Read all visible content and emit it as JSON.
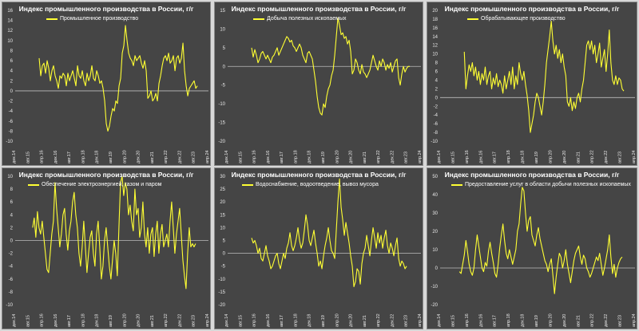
{
  "chart_data": [
    {
      "type": "line",
      "title": "Индекс промышленного производства в России, г/г",
      "series": [
        {
          "name": "Промышленное производство",
          "color": "#ffff33",
          "x_start": 2016.17,
          "values": [
            6.5,
            3.0,
            5.0,
            5.5,
            3.5,
            6.0,
            4.5,
            2.0,
            4.0,
            5.0,
            3.0,
            2.0,
            0.5,
            3.0,
            2.5,
            3.5,
            3.0,
            1.0,
            3.5,
            2.0,
            3.0,
            4.0,
            2.5,
            1.0,
            5.0,
            3.0,
            2.5,
            4.0,
            2.0,
            1.0,
            3.5,
            2.0,
            3.0,
            5.0,
            2.5,
            2.0,
            4.0,
            3.0,
            1.5,
            2.0,
            0.5,
            -2.0,
            -6.5,
            -8.0,
            -7.0,
            -5.0,
            -3.5,
            -4.0,
            -2.0,
            -2.5,
            1.0,
            2.5,
            7.5,
            9.0,
            13.0,
            10.0,
            7.5,
            6.5,
            6.0,
            5.0,
            7.0,
            6.0,
            6.5,
            7.0,
            5.5,
            4.5,
            6.0,
            4.0,
            -1.5,
            -1.0,
            0.0,
            -2.0,
            -1.5,
            -0.5,
            -2.0,
            1.5,
            3.0,
            5.0,
            6.5,
            7.0,
            6.0,
            7.5,
            5.5,
            6.0,
            7.0,
            4.0,
            6.5,
            7.0,
            5.5,
            6.5,
            9.5,
            4.0,
            1.0,
            -1.0,
            0.5,
            1.0,
            1.5,
            2.0,
            0.5,
            1.0
          ]
        }
      ],
      "ylim": [
        -10,
        16
      ],
      "yticks": [
        "-10",
        "-8",
        "-6",
        "-4",
        "-2",
        "0",
        "2",
        "4",
        "6",
        "8",
        "10",
        "12",
        "14",
        "16"
      ],
      "xticks": [
        "дек.14",
        "авг.15",
        "апр.16",
        "дек.16",
        "авг.17",
        "апр.18",
        "дек.18",
        "авг.19",
        "апр.20",
        "дек.20",
        "авг.21",
        "апр.22",
        "дек.22",
        "авг.23",
        "апр.24"
      ],
      "x_start": 2014.92,
      "x_end": 2025.0
    },
    {
      "type": "line",
      "title": "Индекс промышленного производства в России, г/г",
      "series": [
        {
          "name": "Добыча полезных ископаемых",
          "color": "#ffff33",
          "x_start": 2016.17,
          "values": [
            5.0,
            2.5,
            4.5,
            3.0,
            1.0,
            2.0,
            3.5,
            4.0,
            3.0,
            2.0,
            3.0,
            2.0,
            1.0,
            2.5,
            3.0,
            4.0,
            5.0,
            3.0,
            4.0,
            5.0,
            6.0,
            7.0,
            8.0,
            7.5,
            6.5,
            7.0,
            5.5,
            5.0,
            4.0,
            5.0,
            6.0,
            5.0,
            3.0,
            2.0,
            1.0,
            3.5,
            4.0,
            3.0,
            2.0,
            -1.0,
            -4.0,
            -8.0,
            -11.0,
            -12.5,
            -13.0,
            -10.0,
            -11.0,
            -8.0,
            -6.0,
            -5.0,
            -2.5,
            -1.0,
            3.0,
            8.0,
            13.0,
            11.0,
            8.5,
            9.0,
            7.5,
            8.0,
            6.0,
            7.0,
            4.0,
            -2.0,
            -1.0,
            2.0,
            1.0,
            -1.0,
            -2.0,
            0.5,
            -1.5,
            -2.0,
            -3.0,
            -2.0,
            -1.0,
            1.0,
            3.0,
            1.5,
            0.0,
            -1.0,
            1.5,
            0.0,
            2.0,
            1.0,
            -1.0,
            0.5,
            -0.5,
            1.0,
            -1.5,
            0.0,
            1.5,
            2.0,
            -3.0,
            -5.0,
            -2.0,
            0.0,
            -1.5,
            -0.5,
            0.0,
            0.0
          ]
        }
      ],
      "ylim": [
        -20,
        15
      ],
      "yticks": [
        "-20",
        "-15",
        "-10",
        "-5",
        "0",
        "5",
        "10",
        "15"
      ],
      "xticks": [
        "дек.14",
        "авг.15",
        "апр.16",
        "дек.16",
        "авг.17",
        "апр.18",
        "дек.18",
        "авг.19",
        "апр.20",
        "дек.20",
        "авг.21",
        "апр.22",
        "дек.22",
        "авг.23",
        "апр.24"
      ],
      "x_start": 2014.92,
      "x_end": 2025.0
    },
    {
      "type": "line",
      "title": "Индекс промышленного производства в России, г/г",
      "series": [
        {
          "name": "Обрабатывающее производство",
          "color": "#ffff33",
          "x_start": 2016.17,
          "values": [
            10.5,
            2.0,
            5.0,
            7.5,
            6.0,
            8.0,
            5.0,
            7.0,
            4.0,
            6.0,
            3.0,
            5.5,
            4.0,
            7.0,
            3.0,
            5.0,
            6.0,
            2.0,
            4.5,
            3.0,
            5.5,
            2.5,
            4.0,
            3.0,
            1.0,
            5.0,
            2.0,
            4.0,
            6.0,
            3.0,
            7.0,
            2.0,
            5.0,
            3.0,
            8.0,
            5.5,
            4.0,
            6.0,
            3.0,
            0.5,
            -3.0,
            -8.0,
            -6.0,
            -4.0,
            -1.0,
            1.0,
            0.0,
            -2.0,
            -4.0,
            -1.0,
            3.0,
            8.0,
            11.0,
            14.0,
            17.5,
            13.0,
            10.0,
            12.0,
            9.0,
            11.0,
            8.0,
            10.0,
            7.0,
            5.0,
            -1.0,
            -2.0,
            0.0,
            -3.0,
            -1.0,
            -2.5,
            0.0,
            1.0,
            -1.0,
            2.0,
            4.0,
            8.0,
            12.0,
            13.0,
            11.0,
            13.0,
            10.0,
            12.0,
            8.0,
            10.0,
            12.5,
            7.0,
            9.0,
            11.0,
            6.0,
            10.0,
            15.5,
            8.0,
            4.0,
            3.0,
            5.0,
            3.0,
            4.5,
            4.0,
            2.0,
            1.5
          ]
        }
      ],
      "ylim": [
        -10,
        20
      ],
      "yticks": [
        "-10",
        "-8",
        "-6",
        "-4",
        "-2",
        "0",
        "2",
        "4",
        "6",
        "8",
        "10",
        "12",
        "14",
        "16",
        "18",
        "20"
      ],
      "xticks": [
        "дек.14",
        "авг.15",
        "апр.16",
        "дек.16",
        "авг.17",
        "апр.18",
        "дек.18",
        "авг.19",
        "апр.20",
        "дек.20",
        "авг.21",
        "апр.22",
        "дек.22",
        "авг.23",
        "апр.24"
      ],
      "x_start": 2014.92,
      "x_end": 2025.0
    },
    {
      "type": "line",
      "title": "Индекс промышленного производства в России, г/г",
      "series": [
        {
          "name": "Обеспечение электроэнергией, газом и паром",
          "color": "#ffff33",
          "x_start": 2015.83,
          "values": [
            2.0,
            3.5,
            0.5,
            4.5,
            2.0,
            1.0,
            3.0,
            0.5,
            -2.0,
            -4.5,
            -5.0,
            -2.0,
            1.0,
            3.0,
            9.0,
            5.0,
            2.0,
            -1.0,
            1.0,
            4.0,
            5.0,
            1.0,
            -1.5,
            1.5,
            3.0,
            6.0,
            7.5,
            4.0,
            2.0,
            -2.0,
            -4.0,
            -1.0,
            3.0,
            -1.0,
            -5.0,
            -2.0,
            0.5,
            1.5,
            -2.0,
            -4.0,
            1.0,
            3.0,
            -1.0,
            -6.0,
            -4.0,
            0.0,
            2.0,
            -1.0,
            -4.0,
            -6.0,
            -3.0,
            0.0,
            -2.0,
            -5.5,
            2.0,
            9.0,
            10.0,
            7.0,
            9.0,
            8.0,
            4.0,
            5.5,
            3.0,
            1.5,
            8.0,
            4.0,
            5.0,
            0.5,
            2.0,
            6.0,
            1.0,
            -1.0,
            2.0,
            -2.0,
            1.0,
            2.0,
            -2.5,
            1.0,
            3.0,
            -2.0,
            1.0,
            2.5,
            -1.0,
            0.0,
            1.0,
            -1.0,
            3.0,
            6.0,
            2.0,
            -2.0,
            1.0,
            3.0,
            5.0,
            1.0,
            -3.0,
            -5.5,
            -7.5,
            -2.0,
            2.0,
            -1.0,
            -0.5,
            -1.0,
            -0.5
          ]
        }
      ],
      "ylim": [
        -10,
        10
      ],
      "yticks": [
        "-10",
        "-8",
        "-6",
        "-4",
        "-2",
        "0",
        "2",
        "4",
        "6",
        "8",
        "10"
      ],
      "xticks": [
        "дек.14",
        "авг.15",
        "апр.16",
        "дек.16",
        "авг.17",
        "апр.18",
        "дек.18",
        "авг.19",
        "апр.20",
        "дек.20",
        "авг.21",
        "апр.22",
        "дек.22",
        "авг.23",
        "апр.24"
      ],
      "x_start": 2014.92,
      "x_end": 2025.0
    },
    {
      "type": "line",
      "title": "Индекс промышленного производства в России, г/г",
      "series": [
        {
          "name": "Водоснабжение, водоотведение, вывоз мусора",
          "color": "#ffff33",
          "x_start": 2016.17,
          "values": [
            6.0,
            4.0,
            5.0,
            3.0,
            0.0,
            2.0,
            -2.0,
            -3.0,
            0.0,
            3.0,
            -1.0,
            -3.0,
            -6.0,
            -5.0,
            -3.0,
            -1.0,
            0.0,
            -4.0,
            -6.0,
            -3.0,
            0.0,
            -2.0,
            2.0,
            4.0,
            8.0,
            3.0,
            1.0,
            3.0,
            6.0,
            10.0,
            5.0,
            2.0,
            4.0,
            9.0,
            15.0,
            11.0,
            5.0,
            3.0,
            6.0,
            9.0,
            4.0,
            0.0,
            -5.0,
            -3.0,
            -6.0,
            -1.0,
            3.0,
            6.0,
            10.0,
            5.0,
            1.0,
            0.0,
            -2.0,
            9.0,
            20.0,
            29.0,
            18.0,
            13.0,
            7.0,
            12.0,
            8.0,
            4.0,
            -1.0,
            -5.0,
            -13.0,
            -11.0,
            -6.0,
            -7.0,
            -12.0,
            -4.0,
            0.0,
            2.0,
            7.0,
            3.0,
            -1.0,
            5.0,
            10.0,
            6.0,
            2.0,
            8.0,
            4.0,
            7.0,
            2.0,
            6.0,
            9.0,
            3.0,
            0.0,
            4.0,
            2.0,
            -1.0,
            3.0,
            6.0,
            -2.0,
            -5.0,
            -3.0,
            -4.0,
            -6.0,
            -5.0
          ]
        }
      ],
      "ylim": [
        -20,
        30
      ],
      "yticks": [
        "-20",
        "-15",
        "-10",
        "-5",
        "0",
        "5",
        "10",
        "15",
        "20",
        "25",
        "30"
      ],
      "xticks": [
        "дек.14",
        "авг.15",
        "апр.16",
        "дек.16",
        "авг.17",
        "апр.18",
        "дек.18",
        "авг.19",
        "апр.20",
        "дек.20",
        "авг.21",
        "апр.22",
        "дек.22",
        "авг.23",
        "апр.24"
      ],
      "x_start": 2014.92,
      "x_end": 2025.0
    },
    {
      "type": "line",
      "title": "Индекс промышленного производства в России, г/г",
      "series": [
        {
          "name": "Предоставление услуг в области добычи полезных ископаемых",
          "color": "#ffff33",
          "x_start": 2015.92,
          "values": [
            -2.0,
            -3.0,
            2.0,
            7.0,
            15.0,
            9.0,
            2.0,
            -2.0,
            -4.0,
            0.0,
            10.0,
            18.0,
            12.0,
            6.0,
            0.0,
            -2.0,
            3.0,
            1.0,
            9.0,
            14.0,
            8.0,
            3.0,
            -3.0,
            -5.0,
            2.0,
            11.0,
            18.0,
            24.0,
            15.0,
            8.0,
            5.0,
            10.0,
            6.0,
            2.0,
            6.0,
            10.0,
            20.0,
            24.0,
            35.0,
            44.0,
            42.0,
            30.0,
            20.0,
            26.0,
            28.0,
            18.0,
            15.0,
            12.0,
            18.0,
            22.0,
            16.0,
            12.0,
            8.0,
            4.0,
            2.0,
            -2.0,
            2.0,
            5.0,
            -4.0,
            -14.0,
            -5.0,
            2.0,
            8.0,
            6.0,
            0.0,
            4.0,
            10.0,
            2.0,
            -3.0,
            -8.0,
            -2.0,
            4.0,
            8.0,
            10.0,
            12.0,
            6.0,
            2.0,
            7.0,
            5.0,
            0.0,
            -2.0,
            -5.0,
            -3.0,
            0.0,
            3.0,
            6.0,
            4.0,
            8.0,
            2.0,
            -4.0,
            0.0,
            5.0,
            10.0,
            18.0,
            6.0,
            -3.0,
            2.0,
            -5.0,
            0.0,
            3.0,
            5.0,
            6.0
          ]
        }
      ],
      "ylim": [
        -20,
        50
      ],
      "yticks": [
        "-20",
        "-10",
        "0",
        "10",
        "20",
        "30",
        "40",
        "50"
      ],
      "xticks": [
        "дек.14",
        "авг.15",
        "апр.16",
        "дек.16",
        "авг.17",
        "апр.18",
        "дек.18",
        "авг.19",
        "апр.20",
        "дек.20",
        "авг.21",
        "апр.22",
        "дек.22",
        "авг.23",
        "апр.24"
      ],
      "x_start": 2014.92,
      "x_end": 2025.0
    }
  ]
}
